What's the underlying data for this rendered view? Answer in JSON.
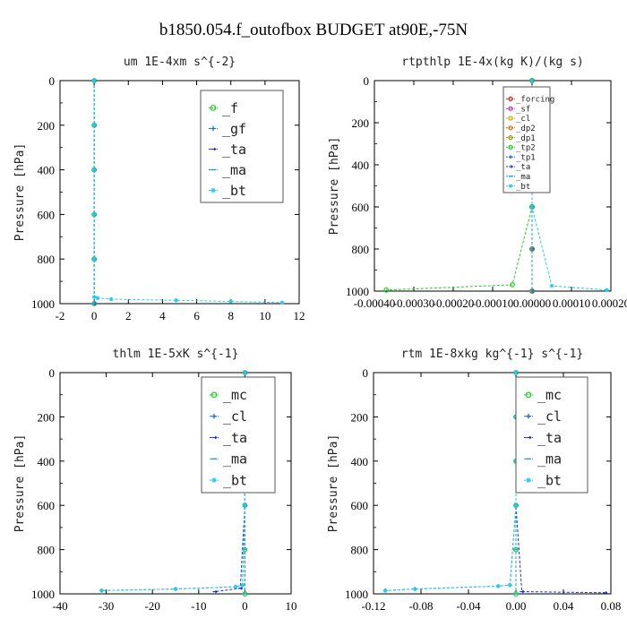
{
  "figure_title": "b1850.054.f_outofbox  BUDGET at90E,-75N",
  "chart_data": [
    {
      "type": "line",
      "title": "um  1E-4xm s^{-2}",
      "ylabel": "Pressure [hPa]",
      "xlim": [
        -2,
        12
      ],
      "ylim": [
        1000,
        0
      ],
      "xticks": [
        "-2",
        "0",
        "2",
        "4",
        "6",
        "8",
        "10",
        "12"
      ],
      "xtick_values": [
        -2,
        0,
        2,
        4,
        6,
        8,
        10,
        12
      ],
      "yticks": [
        "0",
        "200",
        "400",
        "600",
        "800",
        "1000"
      ],
      "ytick_values": [
        0,
        200,
        400,
        600,
        800,
        1000
      ],
      "legend_position": "top-right",
      "series": [
        {
          "name": "_f",
          "color": "#22cc22",
          "marker": "circle",
          "x": [
            0,
            0,
            0,
            0,
            0,
            0
          ],
          "y": [
            0,
            200,
            400,
            600,
            800,
            1000
          ]
        },
        {
          "name": "_gf",
          "color": "#1f6fbf",
          "marker": "cross",
          "x": [
            0,
            0,
            0,
            0,
            0,
            0
          ],
          "y": [
            0,
            200,
            400,
            600,
            800,
            1000
          ]
        },
        {
          "name": "_ta",
          "color": "#1a2fd6",
          "marker": "arrow",
          "x": [
            0,
            0,
            0,
            0,
            0,
            0
          ],
          "y": [
            0,
            200,
            400,
            600,
            800,
            1000
          ]
        },
        {
          "name": "_ma",
          "color": "#1aa0d6",
          "marker": "dash",
          "x": [
            0,
            0,
            0,
            0,
            0,
            0
          ],
          "y": [
            0,
            200,
            400,
            600,
            800,
            1000
          ]
        },
        {
          "name": "_bt",
          "color": "#22ccee",
          "marker": "star",
          "x": [
            0,
            0,
            0,
            0,
            0,
            0,
            0.2,
            1.0,
            4.8,
            8.0,
            11.0
          ],
          "y": [
            0,
            200,
            400,
            600,
            800,
            970,
            975,
            980,
            985,
            990,
            995
          ]
        }
      ]
    },
    {
      "type": "line",
      "title": "rtpthlp  1E-4x(kg K)/(kg s)",
      "ylabel": "Pressure [hPa]",
      "xlim": [
        -0.0004,
        0.0002
      ],
      "ylim": [
        1000,
        0
      ],
      "xticks": [
        "-0.00040",
        "-0.00030",
        "-0.00020",
        "-0.00010",
        "0.00000",
        "0.00010",
        "0.00020"
      ],
      "xtick_values": [
        -0.0004,
        -0.0003,
        -0.0002,
        -0.0001,
        0,
        0.0001,
        0.0002
      ],
      "yticks": [
        "0",
        "200",
        "400",
        "600",
        "800",
        "1000"
      ],
      "ytick_values": [
        0,
        200,
        400,
        600,
        800,
        1000
      ],
      "legend_position": "top-right",
      "series": [
        {
          "name": "_forcing",
          "color": "#cc2222",
          "marker": "circle",
          "x": [
            0,
            0,
            0,
            0,
            0,
            0
          ],
          "y": [
            0,
            200,
            400,
            600,
            800,
            1000
          ]
        },
        {
          "name": "_sf",
          "color": "#cc22aa",
          "marker": "circle",
          "x": [
            0,
            0,
            0,
            0,
            0,
            0
          ],
          "y": [
            0,
            200,
            400,
            600,
            800,
            1000
          ]
        },
        {
          "name": "_cl",
          "color": "#ddaa00",
          "marker": "circle",
          "x": [
            0,
            0,
            0,
            0,
            0,
            0
          ],
          "y": [
            0,
            200,
            400,
            600,
            800,
            1000
          ]
        },
        {
          "name": "_dp2",
          "color": "#cc7700",
          "marker": "circle",
          "x": [
            0,
            0,
            0,
            0,
            0,
            0
          ],
          "y": [
            0,
            200,
            400,
            600,
            800,
            1000
          ]
        },
        {
          "name": "_dp1",
          "color": "#889900",
          "marker": "circle",
          "x": [
            0,
            0,
            0,
            0,
            0,
            0
          ],
          "y": [
            0,
            200,
            400,
            600,
            800,
            1000
          ]
        },
        {
          "name": "_tp2",
          "color": "#22cc22",
          "marker": "circle",
          "x": [
            0,
            0,
            0,
            0,
            -5e-05,
            -0.00037
          ],
          "y": [
            0,
            200,
            400,
            600,
            970,
            995
          ]
        },
        {
          "name": "_tp1",
          "color": "#1f6fbf",
          "marker": "cross",
          "x": [
            0,
            0,
            0,
            0,
            0,
            0
          ],
          "y": [
            0,
            200,
            400,
            600,
            800,
            1000
          ]
        },
        {
          "name": "_ta",
          "color": "#1a2fd6",
          "marker": "arrow",
          "x": [
            0,
            0,
            0,
            0,
            0,
            0
          ],
          "y": [
            0,
            200,
            400,
            600,
            800,
            1000
          ]
        },
        {
          "name": "_ma",
          "color": "#1aa0d6",
          "marker": "dash",
          "x": [
            0,
            0,
            0,
            0,
            0,
            0
          ],
          "y": [
            0,
            200,
            400,
            600,
            800,
            1000
          ]
        },
        {
          "name": "_bt",
          "color": "#22ccee",
          "marker": "star",
          "x": [
            0,
            0,
            0,
            0,
            5e-05,
            0.00019
          ],
          "y": [
            0,
            200,
            400,
            600,
            975,
            995
          ]
        }
      ]
    },
    {
      "type": "line",
      "title": "thlm  1E-5xK s^{-1}",
      "ylabel": "Pressure [hPa]",
      "xlim": [
        -40,
        10
      ],
      "ylim": [
        1000,
        0
      ],
      "xticks": [
        "-40",
        "-30",
        "-20",
        "-10",
        "0",
        "10"
      ],
      "xtick_values": [
        -40,
        -30,
        -20,
        -10,
        0,
        10
      ],
      "yticks": [
        "0",
        "200",
        "400",
        "600",
        "800",
        "1000"
      ],
      "ytick_values": [
        0,
        200,
        400,
        600,
        800,
        1000
      ],
      "legend_position": "top-right",
      "series": [
        {
          "name": "_mc",
          "color": "#22cc22",
          "marker": "circle",
          "x": [
            0,
            0,
            0,
            0,
            0,
            0
          ],
          "y": [
            0,
            200,
            400,
            600,
            800,
            1000
          ]
        },
        {
          "name": "_cl",
          "color": "#1f6fbf",
          "marker": "cross",
          "x": [
            0,
            0,
            0,
            0,
            -0.5,
            -2.0,
            -15.0,
            -31.0
          ],
          "y": [
            0,
            200,
            400,
            600,
            960,
            968,
            978,
            985
          ]
        },
        {
          "name": "_ta",
          "color": "#1a2fd6",
          "marker": "arrow",
          "x": [
            0,
            0,
            0,
            0,
            -1.0,
            -6.5
          ],
          "y": [
            0,
            200,
            400,
            600,
            975,
            990
          ]
        },
        {
          "name": "_ma",
          "color": "#1aa0d6",
          "marker": "dash",
          "x": [
            0,
            0,
            0,
            0,
            0,
            0
          ],
          "y": [
            0,
            200,
            400,
            600,
            800,
            1000
          ]
        },
        {
          "name": "_bt",
          "color": "#22ccee",
          "marker": "star",
          "x": [
            0,
            0,
            0,
            0,
            -0.5,
            -2.0,
            -15.0,
            -31.0
          ],
          "y": [
            0,
            200,
            400,
            600,
            960,
            968,
            978,
            985
          ]
        }
      ]
    },
    {
      "type": "line",
      "title": "rtm  1E-8xkg kg^{-1} s^{-1}",
      "ylabel": "Pressure [hPa]",
      "xlim": [
        -0.12,
        0.08
      ],
      "ylim": [
        1000,
        0
      ],
      "xticks": [
        "-0.12",
        "-0.08",
        "-0.04",
        "0.00",
        "0.04",
        "0.08"
      ],
      "xtick_values": [
        -0.12,
        -0.08,
        -0.04,
        0,
        0.04,
        0.08
      ],
      "yticks": [
        "0",
        "200",
        "400",
        "600",
        "800",
        "1000"
      ],
      "ytick_values": [
        0,
        200,
        400,
        600,
        800,
        1000
      ],
      "legend_position": "top-right",
      "series": [
        {
          "name": "_mc",
          "color": "#22cc22",
          "marker": "circle",
          "x": [
            0,
            0,
            0,
            0,
            0,
            0
          ],
          "y": [
            0,
            200,
            400,
            600,
            800,
            1000
          ]
        },
        {
          "name": "_cl",
          "color": "#1f6fbf",
          "marker": "cross",
          "x": [
            0,
            0,
            0,
            0,
            -0.005,
            -0.015,
            -0.085,
            -0.11
          ],
          "y": [
            0,
            200,
            400,
            600,
            960,
            965,
            978,
            985
          ]
        },
        {
          "name": "_ta",
          "color": "#1a2fd6",
          "marker": "arrow",
          "x": [
            0,
            0,
            0,
            0,
            0.005,
            0.075
          ],
          "y": [
            0,
            200,
            400,
            600,
            990,
            995
          ]
        },
        {
          "name": "_ma",
          "color": "#1aa0d6",
          "marker": "dash",
          "x": [
            0,
            0,
            0,
            0,
            0,
            0
          ],
          "y": [
            0,
            200,
            400,
            600,
            800,
            1000
          ]
        },
        {
          "name": "_bt",
          "color": "#22ccee",
          "marker": "star",
          "x": [
            0,
            0,
            0,
            0,
            -0.005,
            -0.015,
            -0.085,
            -0.11
          ],
          "y": [
            0,
            200,
            400,
            600,
            960,
            965,
            978,
            985
          ]
        }
      ]
    }
  ]
}
